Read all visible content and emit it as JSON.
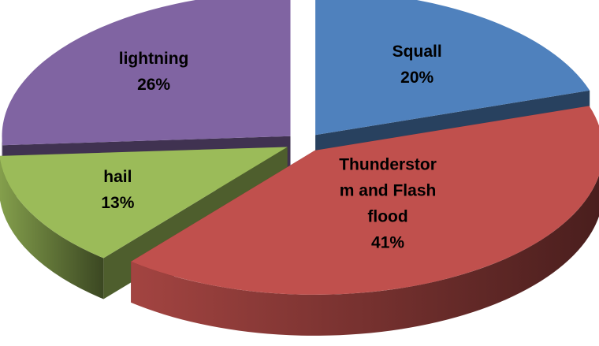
{
  "chart_data": {
    "type": "pie",
    "style": "3d-exploded",
    "legend": "none",
    "slices": [
      {
        "label": "Squall",
        "label_lines": [
          "Squall",
          "20%"
        ],
        "percent": 20,
        "color": "#4f81bd"
      },
      {
        "label": "Thunderstorm and Flash flood",
        "label_lines": [
          "Thunderstor",
          "m and Flash",
          "flood",
          "41%"
        ],
        "percent": 41,
        "color": "#c0504d"
      },
      {
        "label": "hail",
        "label_lines": [
          "hail",
          "13%"
        ],
        "percent": 13,
        "color": "#9bbb59"
      },
      {
        "label": "lightning",
        "label_lines": [
          "lightning",
          "26%"
        ],
        "percent": 26,
        "color": "#8064a2"
      }
    ]
  }
}
